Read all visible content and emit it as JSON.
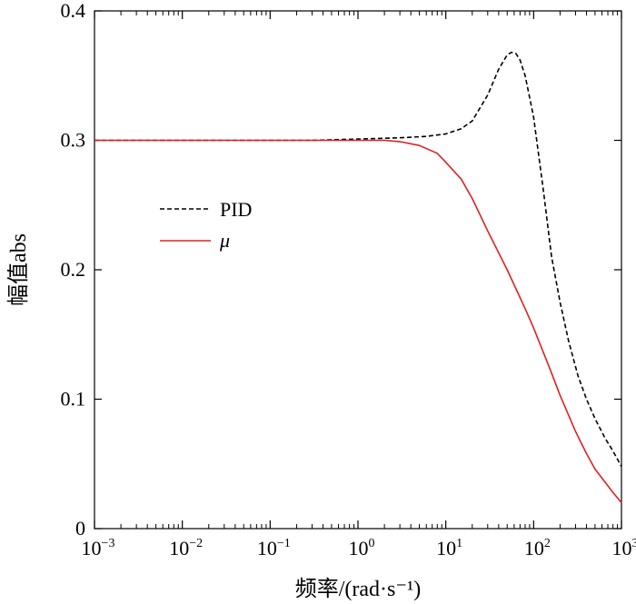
{
  "chart_data": {
    "type": "line",
    "title": "",
    "xlabel": "频率/(rad·s⁻¹)",
    "ylabel": "幅值abs",
    "xscale": "log",
    "xlim": [
      0.001,
      1000
    ],
    "ylim": [
      0,
      0.4
    ],
    "x_ticks": [
      {
        "value": 0.001,
        "base": "10",
        "exp": "−3"
      },
      {
        "value": 0.01,
        "base": "10",
        "exp": "−2"
      },
      {
        "value": 0.1,
        "base": "10",
        "exp": "−1"
      },
      {
        "value": 1,
        "base": "10",
        "exp": "0"
      },
      {
        "value": 10,
        "base": "10",
        "exp": "1"
      },
      {
        "value": 100,
        "base": "10",
        "exp": "2"
      },
      {
        "value": 1000,
        "base": "10",
        "exp": "3"
      }
    ],
    "y_ticks": [
      {
        "value": 0,
        "label": "0"
      },
      {
        "value": 0.1,
        "label": "0.1"
      },
      {
        "value": 0.2,
        "label": "0.2"
      },
      {
        "value": 0.3,
        "label": "0.3"
      },
      {
        "value": 0.4,
        "label": "0.4"
      }
    ],
    "legend_position": "middle-left",
    "series": [
      {
        "name": "PID",
        "color": "#000000",
        "style": "dashed",
        "points": [
          [
            0.001,
            0.3
          ],
          [
            0.01,
            0.3
          ],
          [
            0.1,
            0.3
          ],
          [
            0.3,
            0.3
          ],
          [
            1,
            0.301
          ],
          [
            3,
            0.302
          ],
          [
            6,
            0.303
          ],
          [
            10,
            0.305
          ],
          [
            15,
            0.309
          ],
          [
            20,
            0.315
          ],
          [
            30,
            0.335
          ],
          [
            40,
            0.355
          ],
          [
            50,
            0.366
          ],
          [
            56,
            0.368
          ],
          [
            63,
            0.367
          ],
          [
            70,
            0.362
          ],
          [
            80,
            0.35
          ],
          [
            100,
            0.318
          ],
          [
            130,
            0.26
          ],
          [
            160,
            0.21
          ],
          [
            200,
            0.175
          ],
          [
            250,
            0.145
          ],
          [
            320,
            0.118
          ],
          [
            400,
            0.1
          ],
          [
            500,
            0.085
          ],
          [
            650,
            0.07
          ],
          [
            800,
            0.06
          ],
          [
            1000,
            0.048
          ]
        ]
      },
      {
        "name": "μ",
        "color": "#e02020",
        "style": "solid",
        "points": [
          [
            0.001,
            0.3
          ],
          [
            0.01,
            0.3
          ],
          [
            0.1,
            0.3
          ],
          [
            0.5,
            0.3
          ],
          [
            1,
            0.3
          ],
          [
            2,
            0.3
          ],
          [
            3,
            0.299
          ],
          [
            5,
            0.296
          ],
          [
            8,
            0.29
          ],
          [
            10,
            0.283
          ],
          [
            15,
            0.27
          ],
          [
            20,
            0.255
          ],
          [
            30,
            0.23
          ],
          [
            50,
            0.2
          ],
          [
            80,
            0.17
          ],
          [
            100,
            0.155
          ],
          [
            150,
            0.125
          ],
          [
            200,
            0.103
          ],
          [
            300,
            0.075
          ],
          [
            400,
            0.058
          ],
          [
            500,
            0.046
          ],
          [
            650,
            0.036
          ],
          [
            800,
            0.028
          ],
          [
            1000,
            0.02
          ]
        ]
      }
    ]
  }
}
